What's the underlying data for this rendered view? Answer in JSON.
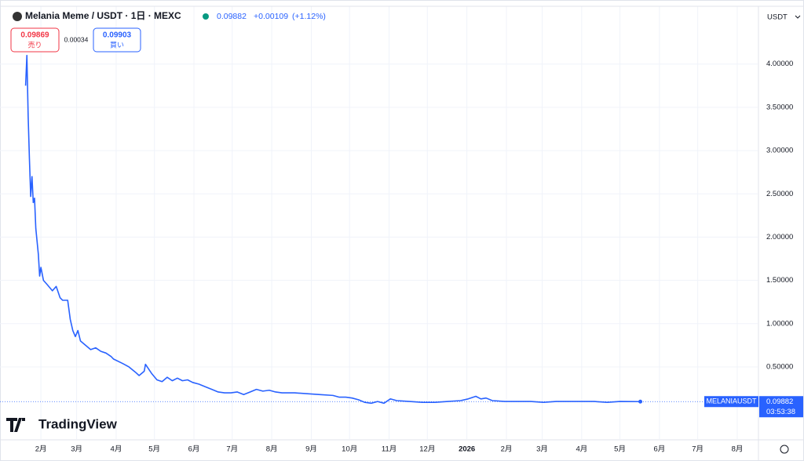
{
  "header": {
    "symbol": "Melania Meme / USDT · 1日 · MEXC",
    "change": "+0.00109",
    "change_pct": "(+1.12%)",
    "sell_price": 0.09869,
    "sell_label": "売り",
    "spread": 0.00034,
    "buy_price": 0.09903,
    "buy_label": "買い",
    "currency": "USDT",
    "logo": "TradingView"
  },
  "chart_data": {
    "type": "line",
    "x": [
      19,
      20,
      21,
      22,
      23,
      24,
      25,
      26,
      27,
      28,
      29,
      30,
      31,
      33,
      36,
      40,
      43,
      46,
      48,
      52,
      54,
      56,
      58,
      60,
      62,
      66,
      70,
      74,
      78,
      82,
      86,
      88,
      95,
      100,
      105,
      108,
      112,
      113,
      118,
      122,
      126,
      130,
      134,
      138,
      142,
      146,
      150,
      155,
      160,
      165,
      170,
      175,
      180,
      185,
      190,
      195,
      200,
      205,
      210,
      215,
      220,
      230,
      240,
      250,
      260,
      265,
      270,
      275,
      280,
      285,
      290,
      295,
      300,
      305,
      310,
      320,
      330,
      340,
      350,
      360,
      366,
      372,
      376,
      380,
      385,
      395,
      405,
      415,
      425,
      435,
      445,
      455,
      465,
      475,
      485,
      501
    ],
    "series": [
      {
        "name": "MELANIAUSDT",
        "color": "#2962ff",
        "values": [
          3.75,
          4.1,
          3.4,
          2.9,
          2.47,
          2.7,
          2.4,
          2.45,
          2.1,
          1.95,
          1.8,
          1.55,
          1.65,
          1.5,
          1.45,
          1.38,
          1.43,
          1.3,
          1.27,
          1.27,
          1.05,
          0.92,
          0.85,
          0.92,
          0.8,
          0.75,
          0.7,
          0.72,
          0.68,
          0.66,
          0.62,
          0.59,
          0.54,
          0.5,
          0.44,
          0.4,
          0.45,
          0.53,
          0.42,
          0.35,
          0.33,
          0.38,
          0.34,
          0.37,
          0.34,
          0.35,
          0.32,
          0.3,
          0.27,
          0.24,
          0.21,
          0.2,
          0.2,
          0.21,
          0.18,
          0.21,
          0.24,
          0.22,
          0.23,
          0.21,
          0.2,
          0.2,
          0.19,
          0.18,
          0.17,
          0.15,
          0.15,
          0.14,
          0.12,
          0.09,
          0.08,
          0.1,
          0.08,
          0.13,
          0.11,
          0.1,
          0.09,
          0.09,
          0.1,
          0.11,
          0.13,
          0.16,
          0.13,
          0.14,
          0.11,
          0.1,
          0.1,
          0.1,
          0.09,
          0.1,
          0.1,
          0.1,
          0.1,
          0.09,
          0.1,
          0.09882
        ]
      }
    ],
    "xlim": [
      2,
      593
    ],
    "xticks": [
      {
        "value": 31,
        "label": "2月"
      },
      {
        "value": 59,
        "label": "3月"
      },
      {
        "value": 90,
        "label": "4月"
      },
      {
        "value": 120,
        "label": "5月"
      },
      {
        "value": 151,
        "label": "6月"
      },
      {
        "value": 181,
        "label": "7月"
      },
      {
        "value": 212,
        "label": "8月"
      },
      {
        "value": 243,
        "label": "9月"
      },
      {
        "value": 273,
        "label": "10月"
      },
      {
        "value": 304,
        "label": "11月"
      },
      {
        "value": 334,
        "label": "12月"
      },
      {
        "value": 365,
        "label": "2026"
      },
      {
        "value": 396,
        "label": "2月"
      },
      {
        "value": 424,
        "label": "3月"
      },
      {
        "value": 455,
        "label": "4月"
      },
      {
        "value": 485,
        "label": "5月"
      },
      {
        "value": 516,
        "label": "6月"
      },
      {
        "value": 546,
        "label": "7月"
      },
      {
        "value": 577,
        "label": "8月"
      }
    ],
    "ylim": [
      -0.334,
      4.668
    ],
    "yticks": [
      {
        "value": 0.5,
        "label": "0.50000"
      },
      {
        "value": 1,
        "label": "1.00000"
      },
      {
        "value": 1.5,
        "label": "1.50000"
      },
      {
        "value": 2,
        "label": "2.00000"
      },
      {
        "value": 2.5,
        "label": "2.50000"
      },
      {
        "value": 3,
        "label": "3.00000"
      },
      {
        "value": 3.5,
        "label": "3.50000"
      },
      {
        "value": 4,
        "label": "4.00000"
      }
    ],
    "last_price_label": "0.09882",
    "countdown": "03:53:38",
    "grid": true
  }
}
